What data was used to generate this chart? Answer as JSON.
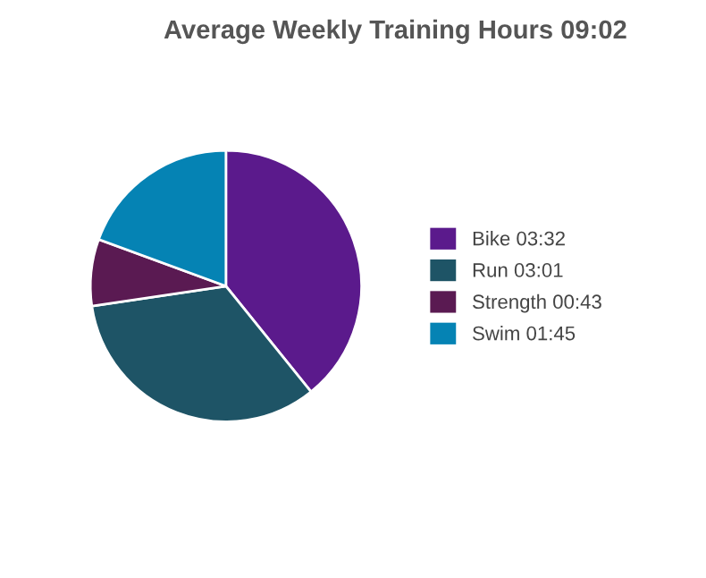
{
  "chart_data": {
    "type": "pie",
    "title": "Average Weekly Training Hours 09:02",
    "categories": [
      "Bike 03:32",
      "Run 03:01",
      "Strength 00:43",
      "Swim 01:45"
    ],
    "values": [
      212,
      181,
      43,
      105
    ],
    "colors": [
      "#5b1a8c",
      "#1e5466",
      "#5a1a52",
      "#0583b4"
    ],
    "legend": "right"
  }
}
